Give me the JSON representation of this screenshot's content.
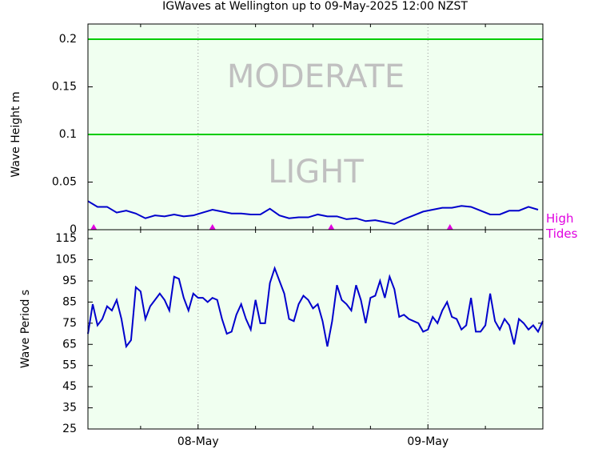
{
  "chart_data": [
    {
      "type": "line",
      "title": "IGWaves at Wellington up to 09-May-2025 12:00 NZST",
      "y_label": "Wave Height m",
      "x": [
        -11.5,
        -10.5,
        -9.5,
        -8.5,
        -7.5,
        -6.5,
        -5.5,
        -4.5,
        -3.5,
        -2.5,
        -1.5,
        -0.5,
        0.5,
        1.5,
        2.5,
        3.5,
        4.5,
        5.5,
        6.5,
        7.5,
        8.5,
        9.5,
        10.5,
        11.5,
        12.5,
        13.5,
        14.5,
        15.5,
        16.5,
        17.5,
        18.5,
        19.5,
        20.5,
        21.5,
        22.5,
        23.5,
        24.5,
        25.5,
        26.5,
        27.5,
        28.5,
        29.5,
        30.5,
        31.5,
        32.5,
        33.5,
        34.5,
        35.5
      ],
      "series": [
        {
          "color": "#0000cc",
          "values": [
            0.03,
            0.024,
            0.024,
            0.018,
            0.02,
            0.017,
            0.012,
            0.015,
            0.014,
            0.016,
            0.014,
            0.015,
            0.018,
            0.021,
            0.019,
            0.017,
            0.017,
            0.016,
            0.016,
            0.022,
            0.015,
            0.012,
            0.013,
            0.013,
            0.016,
            0.014,
            0.014,
            0.011,
            0.012,
            0.009,
            0.01,
            0.008,
            0.006,
            0.011,
            0.015,
            0.019,
            0.021,
            0.023,
            0.023,
            0.025,
            0.024,
            0.02,
            0.016,
            0.016,
            0.02,
            0.02,
            0.024,
            0.021
          ]
        }
      ],
      "xlim": [
        -11.5,
        36
      ],
      "ylim": [
        0,
        0.216
      ],
      "yticks": [
        0,
        0.05,
        0.1,
        0.15,
        0.2
      ],
      "thresholds": {
        "color": "#00cc00",
        "values": [
          0.1,
          0.2
        ]
      },
      "zones": [
        "MODERATE",
        "LIGHT"
      ],
      "tides": {
        "label": "High Tides",
        "color": "#e000e0",
        "x": [
          -10.9,
          1.5,
          13.9,
          26.3
        ]
      }
    },
    {
      "type": "line",
      "y_label": "Wave Period s",
      "x": [
        -11.5,
        -11,
        -10.5,
        -10,
        -9.5,
        -9,
        -8.5,
        -8,
        -7.5,
        -7,
        -6.5,
        -6,
        -5.5,
        -5,
        -4.5,
        -4,
        -3.5,
        -3,
        -2.5,
        -2,
        -1.5,
        -1,
        -0.5,
        0,
        0.5,
        1,
        1.5,
        2,
        2.5,
        3,
        3.5,
        4,
        4.5,
        5,
        5.5,
        6,
        6.5,
        7,
        7.5,
        8,
        8.5,
        9,
        9.5,
        10,
        10.5,
        11,
        11.5,
        12,
        12.5,
        13,
        13.5,
        14,
        14.5,
        15,
        15.5,
        16,
        16.5,
        17,
        17.5,
        18,
        18.5,
        19,
        19.5,
        20,
        20.5,
        21,
        21.5,
        22,
        22.5,
        23,
        23.5,
        24,
        24.5,
        25,
        25.5,
        26,
        26.5,
        27,
        27.5,
        28,
        28.5,
        29,
        29.5,
        30,
        30.5,
        31,
        31.5,
        32,
        32.5,
        33,
        33.5,
        34,
        34.5,
        35,
        35.5,
        36
      ],
      "series": [
        {
          "color": "#0000cc",
          "values": [
            70,
            84,
            74,
            77,
            83,
            81,
            86,
            77,
            64,
            67,
            92,
            90,
            77,
            83,
            86,
            89,
            86,
            81,
            97,
            96,
            87,
            81,
            89,
            87,
            87,
            85,
            87,
            86,
            77,
            70,
            71,
            79,
            84,
            77,
            72,
            86,
            75,
            75,
            94,
            101,
            95,
            89,
            77,
            76,
            84,
            88,
            86,
            82,
            84,
            76,
            64,
            76,
            93,
            86,
            84,
            81,
            93,
            86,
            75,
            87,
            88,
            95,
            87,
            97,
            91,
            78,
            79,
            77,
            76,
            75,
            71,
            72,
            78,
            75,
            81,
            85,
            78,
            77,
            72,
            74,
            87,
            71,
            71,
            74,
            89,
            76,
            72,
            77,
            74,
            65,
            77,
            75,
            72,
            74,
            71,
            76
          ]
        }
      ],
      "xlim": [
        -11.5,
        36
      ],
      "ylim": [
        25,
        119.2
      ],
      "yticks": [
        25,
        35,
        45,
        55,
        65,
        75,
        85,
        95,
        105,
        115
      ],
      "xticks": [
        {
          "value": 0,
          "label": "08-May"
        },
        {
          "value": 24,
          "label": "09-May"
        }
      ],
      "xminor": [
        -6,
        6,
        12,
        18,
        30
      ]
    }
  ]
}
